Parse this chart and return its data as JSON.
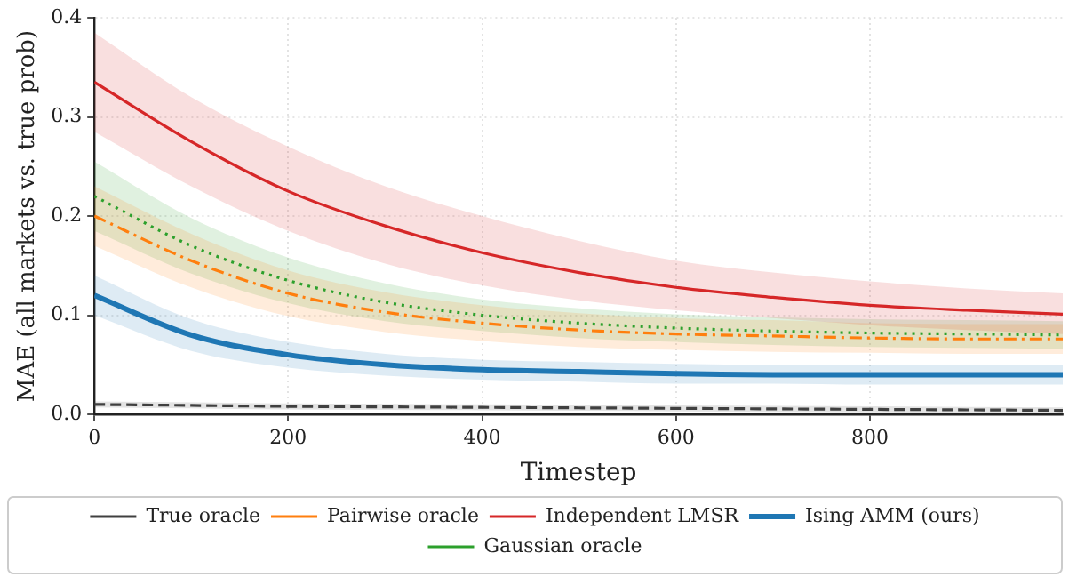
{
  "chart_data": {
    "type": "line",
    "xlabel": "Timestep",
    "ylabel": "MAE (all markets vs. true prob)",
    "x": [
      0,
      100,
      200,
      300,
      400,
      500,
      600,
      700,
      800,
      900,
      999
    ],
    "xlim": [
      0,
      999
    ],
    "xticks": [
      0,
      200,
      400,
      600,
      800
    ],
    "ylim": [
      0,
      0.4
    ],
    "yticks": [
      {
        "value": 0,
        "label": "0.0"
      },
      0.1,
      0.2,
      0.3,
      0.4
    ],
    "grid": true,
    "legend": "bottom",
    "marker": "none",
    "series": [
      {
        "name": "True oracle",
        "color": "#404040",
        "line_style": "dashed",
        "values": [
          0.01,
          0.009,
          0.008,
          0.0075,
          0.007,
          0.0065,
          0.006,
          0.0055,
          0.005,
          0.0045,
          0.004
        ],
        "lower": [
          0.007,
          0.006,
          0.005,
          0.0045,
          0.004,
          0.0035,
          0.003,
          0.0025,
          0.002,
          0.0015,
          0.001
        ],
        "upper": [
          0.013,
          0.012,
          0.011,
          0.0105,
          0.01,
          0.0095,
          0.009,
          0.0085,
          0.008,
          0.0075,
          0.007
        ]
      },
      {
        "name": "Pairwise oracle",
        "color": "#ff7f0e",
        "line_style": "dashdot",
        "values": [
          0.2,
          0.155,
          0.122,
          0.103,
          0.092,
          0.085,
          0.081,
          0.079,
          0.077,
          0.076,
          0.076
        ],
        "lower": [
          0.17,
          0.128,
          0.099,
          0.083,
          0.074,
          0.068,
          0.065,
          0.063,
          0.062,
          0.061,
          0.061
        ],
        "upper": [
          0.23,
          0.182,
          0.145,
          0.123,
          0.11,
          0.102,
          0.097,
          0.095,
          0.092,
          0.091,
          0.091
        ]
      },
      {
        "name": "Independent LMSR",
        "color": "#d62728",
        "line_style": "solid",
        "values": [
          0.335,
          0.275,
          0.225,
          0.19,
          0.163,
          0.143,
          0.128,
          0.118,
          0.11,
          0.105,
          0.101
        ],
        "lower": [
          0.285,
          0.23,
          0.185,
          0.152,
          0.13,
          0.115,
          0.105,
          0.097,
          0.09,
          0.085,
          0.081
        ],
        "upper": [
          0.385,
          0.32,
          0.27,
          0.23,
          0.2,
          0.175,
          0.155,
          0.143,
          0.134,
          0.127,
          0.122
        ]
      },
      {
        "name": "Ising AMM (ours)",
        "color": "#1f77b4",
        "line_style": "solid",
        "values": [
          0.12,
          0.08,
          0.06,
          0.05,
          0.045,
          0.043,
          0.041,
          0.04,
          0.04,
          0.04,
          0.04
        ],
        "lower": [
          0.1,
          0.064,
          0.047,
          0.039,
          0.035,
          0.033,
          0.031,
          0.031,
          0.03,
          0.03,
          0.03
        ],
        "upper": [
          0.14,
          0.096,
          0.073,
          0.061,
          0.055,
          0.053,
          0.051,
          0.05,
          0.05,
          0.05,
          0.05
        ]
      },
      {
        "name": "Gaussian oracle",
        "color": "#2ca02c",
        "line_style": "dotted",
        "values": [
          0.22,
          0.17,
          0.135,
          0.113,
          0.1,
          0.092,
          0.087,
          0.084,
          0.082,
          0.081,
          0.08
        ],
        "lower": [
          0.185,
          0.142,
          0.112,
          0.094,
          0.084,
          0.077,
          0.073,
          0.07,
          0.068,
          0.067,
          0.066
        ],
        "upper": [
          0.255,
          0.198,
          0.158,
          0.132,
          0.116,
          0.107,
          0.101,
          0.098,
          0.096,
          0.095,
          0.094
        ]
      }
    ]
  }
}
